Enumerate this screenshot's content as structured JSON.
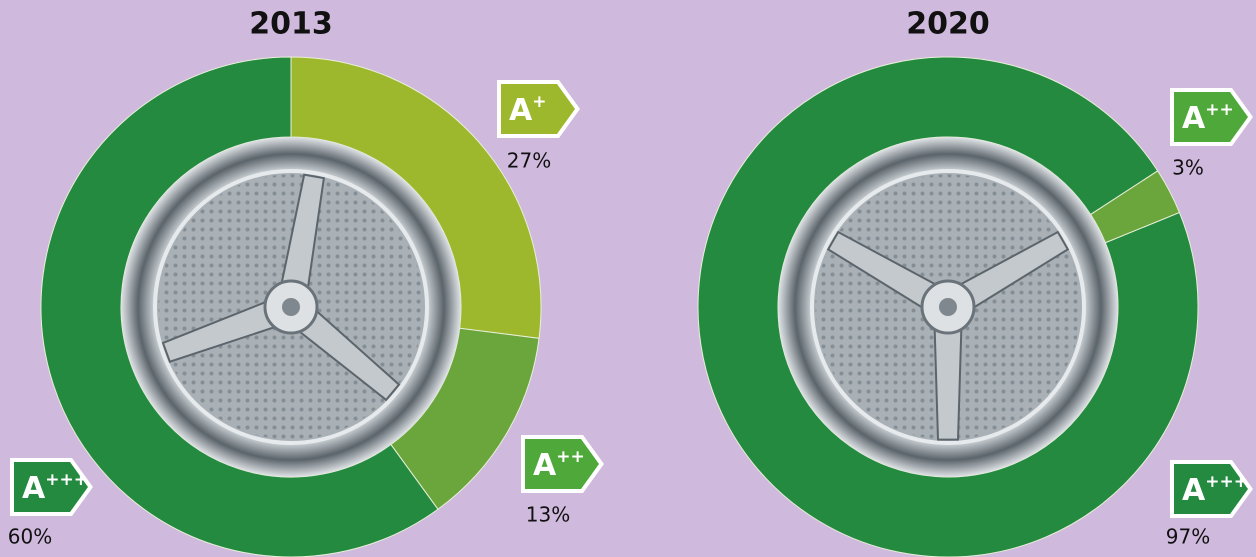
{
  "chart_data": [
    {
      "type": "donut",
      "title": "2013",
      "start_angle": 0,
      "categories": [
        "A+",
        "A++",
        "A+++"
      ],
      "values": [
        27,
        13,
        60
      ],
      "value_labels": [
        "27%",
        "13%",
        "60%"
      ],
      "colors": [
        "#9db82c",
        "#6aa63c",
        "#238a3f"
      ],
      "badge_colors": [
        "#9db82c",
        "#4ea83a",
        "#238a3f"
      ]
    },
    {
      "type": "donut",
      "title": "2020",
      "start_angle": 57,
      "categories": [
        "A++",
        "A+++"
      ],
      "values": [
        3,
        97
      ],
      "value_labels": [
        "3%",
        "97%"
      ],
      "colors": [
        "#6aa63c",
        "#238a3f"
      ],
      "badge_colors": [
        "#4ea83a",
        "#238a3f"
      ]
    }
  ]
}
